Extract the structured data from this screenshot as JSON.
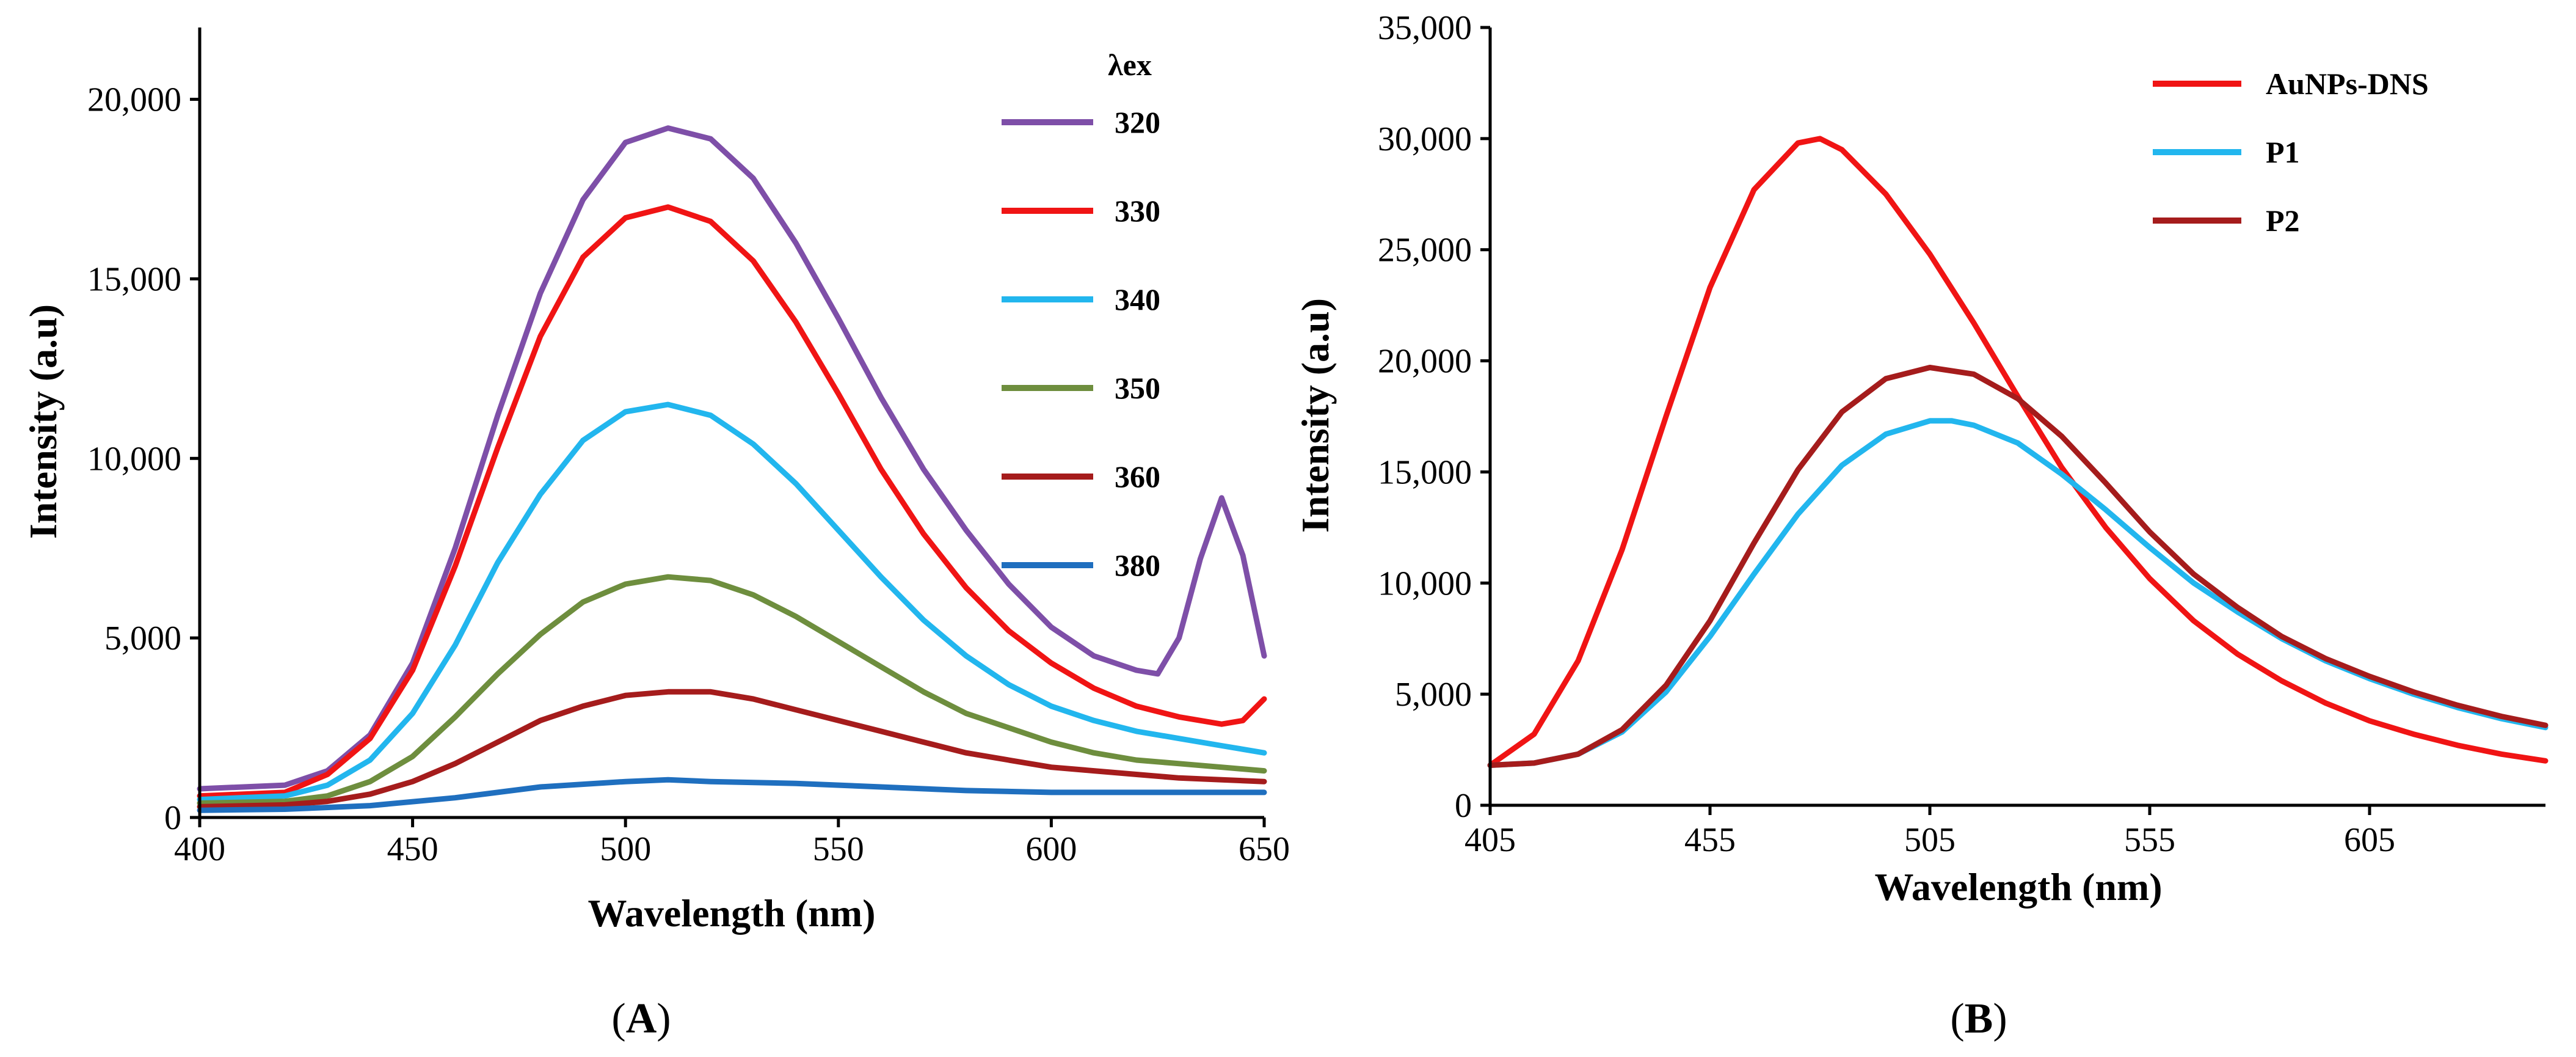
{
  "chart_data": [
    {
      "panel": "A",
      "type": "line",
      "xlabel": "Wavelength (nm)",
      "ylabel": "Intensity (a.u)",
      "xlim": [
        400,
        650
      ],
      "ylim": [
        0,
        22000
      ],
      "xticks": [
        400,
        450,
        500,
        550,
        600,
        650
      ],
      "xtick_labels": [
        "400",
        "450",
        "500",
        "550",
        "600",
        "650"
      ],
      "yticks": [
        0,
        5000,
        10000,
        15000,
        20000
      ],
      "ytick_labels": [
        "0",
        "5,000",
        "10,000",
        "15,000",
        "20,000"
      ],
      "legend_title": "λex",
      "legend_position": "top-right",
      "series": [
        {
          "name": "320",
          "color": "#7E4FA8",
          "x": [
            400,
            420,
            430,
            440,
            450,
            460,
            470,
            480,
            490,
            500,
            510,
            520,
            530,
            540,
            550,
            560,
            570,
            580,
            590,
            600,
            610,
            620,
            625,
            630,
            635,
            640,
            645,
            650
          ],
          "y": [
            800,
            900,
            1300,
            2300,
            4300,
            7500,
            11200,
            14600,
            17200,
            18800,
            19200,
            18900,
            17800,
            16000,
            13900,
            11700,
            9700,
            8000,
            6500,
            5300,
            4500,
            4100,
            4000,
            5000,
            7200,
            8900,
            7300,
            4500
          ]
        },
        {
          "name": "330",
          "color": "#F01414",
          "x": [
            400,
            420,
            430,
            440,
            450,
            460,
            470,
            480,
            490,
            500,
            510,
            520,
            530,
            540,
            550,
            560,
            570,
            580,
            590,
            600,
            610,
            620,
            630,
            640,
            645,
            650
          ],
          "y": [
            600,
            700,
            1200,
            2200,
            4100,
            7000,
            10300,
            13400,
            15600,
            16700,
            17000,
            16600,
            15500,
            13800,
            11800,
            9700,
            7900,
            6400,
            5200,
            4300,
            3600,
            3100,
            2800,
            2600,
            2700,
            3300
          ]
        },
        {
          "name": "340",
          "color": "#22B6EE",
          "x": [
            400,
            420,
            430,
            440,
            450,
            460,
            470,
            480,
            490,
            500,
            510,
            520,
            530,
            540,
            550,
            560,
            570,
            580,
            590,
            600,
            610,
            620,
            630,
            640,
            650
          ],
          "y": [
            500,
            600,
            900,
            1600,
            2900,
            4800,
            7100,
            9000,
            10500,
            11300,
            11500,
            11200,
            10400,
            9300,
            8000,
            6700,
            5500,
            4500,
            3700,
            3100,
            2700,
            2400,
            2200,
            2000,
            1800
          ]
        },
        {
          "name": "350",
          "color": "#6E8E3E",
          "x": [
            400,
            420,
            430,
            440,
            450,
            460,
            470,
            480,
            490,
            500,
            510,
            520,
            530,
            540,
            550,
            560,
            570,
            580,
            590,
            600,
            610,
            620,
            630,
            640,
            650
          ],
          "y": [
            400,
            450,
            600,
            1000,
            1700,
            2800,
            4000,
            5100,
            6000,
            6500,
            6700,
            6600,
            6200,
            5600,
            4900,
            4200,
            3500,
            2900,
            2500,
            2100,
            1800,
            1600,
            1500,
            1400,
            1300
          ]
        },
        {
          "name": "360",
          "color": "#A51C1C",
          "x": [
            400,
            420,
            430,
            440,
            450,
            460,
            470,
            480,
            490,
            500,
            510,
            520,
            530,
            540,
            550,
            560,
            570,
            580,
            590,
            600,
            610,
            620,
            630,
            640,
            650
          ],
          "y": [
            300,
            350,
            450,
            650,
            1000,
            1500,
            2100,
            2700,
            3100,
            3400,
            3500,
            3500,
            3300,
            3000,
            2700,
            2400,
            2100,
            1800,
            1600,
            1400,
            1300,
            1200,
            1100,
            1050,
            1000
          ]
        },
        {
          "name": "380",
          "color": "#1F6FBF",
          "x": [
            400,
            420,
            440,
            460,
            480,
            500,
            510,
            520,
            540,
            560,
            580,
            600,
            620,
            640,
            650
          ],
          "y": [
            200,
            230,
            330,
            550,
            850,
            1000,
            1050,
            1000,
            950,
            850,
            750,
            700,
            700,
            700,
            700
          ]
        }
      ]
    },
    {
      "panel": "B",
      "type": "line",
      "xlabel": "Wavelength (nm)",
      "ylabel": "Intensity (a.u)",
      "xlim": [
        405,
        645
      ],
      "ylim": [
        0,
        35000
      ],
      "xticks": [
        405,
        455,
        505,
        555,
        605
      ],
      "xtick_labels": [
        "405",
        "455",
        "505",
        "555",
        "605"
      ],
      "yticks": [
        0,
        5000,
        10000,
        15000,
        20000,
        25000,
        30000,
        35000
      ],
      "ytick_labels": [
        "0",
        "5,000",
        "10,000",
        "15,000",
        "20,000",
        "25,000",
        "30,000",
        "35,000"
      ],
      "legend_position": "top-right",
      "series": [
        {
          "name": "AuNPs-DNS",
          "color": "#F01414",
          "x": [
            405,
            415,
            425,
            435,
            445,
            455,
            465,
            475,
            480,
            485,
            495,
            505,
            515,
            525,
            535,
            545,
            555,
            565,
            575,
            585,
            595,
            605,
            615,
            625,
            635,
            645
          ],
          "y": [
            1800,
            3200,
            6500,
            11500,
            17500,
            23300,
            27700,
            29800,
            30000,
            29500,
            27500,
            24800,
            21700,
            18400,
            15200,
            12500,
            10200,
            8300,
            6800,
            5600,
            4600,
            3800,
            3200,
            2700,
            2300,
            2000
          ]
        },
        {
          "name": "P1",
          "color": "#22B6EE",
          "x": [
            405,
            415,
            425,
            435,
            445,
            455,
            465,
            475,
            485,
            495,
            505,
            510,
            515,
            525,
            535,
            545,
            555,
            565,
            575,
            585,
            595,
            605,
            615,
            625,
            635,
            645
          ],
          "y": [
            1800,
            1900,
            2300,
            3300,
            5100,
            7600,
            10400,
            13100,
            15300,
            16700,
            17300,
            17300,
            17100,
            16300,
            14900,
            13300,
            11600,
            10000,
            8700,
            7500,
            6500,
            5700,
            5000,
            4400,
            3900,
            3500
          ]
        },
        {
          "name": "P2",
          "color": "#A51C1C",
          "x": [
            405,
            415,
            425,
            435,
            445,
            455,
            465,
            475,
            485,
            495,
            505,
            515,
            525,
            535,
            545,
            555,
            565,
            575,
            585,
            595,
            605,
            615,
            625,
            635,
            645
          ],
          "y": [
            1800,
            1900,
            2300,
            3400,
            5400,
            8300,
            11800,
            15100,
            17700,
            19200,
            19700,
            19400,
            18300,
            16600,
            14500,
            12300,
            10400,
            8900,
            7600,
            6600,
            5800,
            5100,
            4500,
            4000,
            3600
          ]
        }
      ]
    }
  ],
  "panel_labels": {
    "A": "A",
    "B": "B"
  }
}
